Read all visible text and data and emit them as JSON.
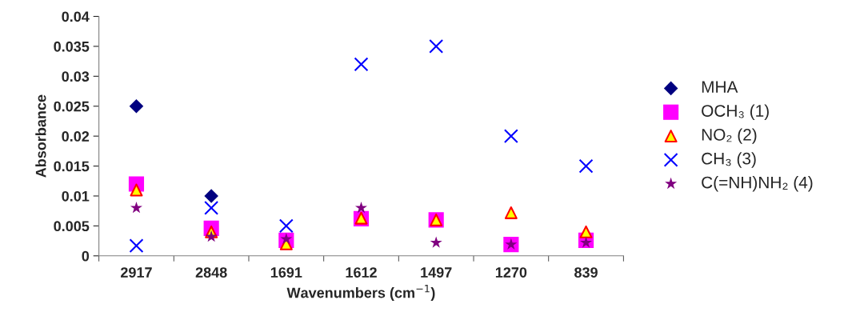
{
  "chart_data": {
    "type": "scatter",
    "xlabel": "Wavenumbers (cm$^{−1}$)",
    "ylabel": "Absorbance",
    "categories": [
      "2917",
      "2848",
      "1691",
      "1612",
      "1497",
      "1270",
      "839"
    ],
    "ylim": [
      0,
      0.04
    ],
    "yticks": [
      0,
      0.005,
      0.01,
      0.015,
      0.02,
      0.025,
      0.03,
      0.035,
      0.04
    ],
    "grid": false,
    "legend": "right",
    "series": [
      {
        "name": "MHA",
        "color": "#000080",
        "marker": "diamond",
        "values": [
          0.025,
          0.01,
          null,
          null,
          null,
          null,
          null
        ]
      },
      {
        "name": "OCH₃ (1)",
        "color": "#ff00ff",
        "marker": "square",
        "values": [
          0.012,
          0.0046,
          0.0026,
          0.0062,
          0.006,
          0.0019,
          0.0026
        ]
      },
      {
        "name": "NO₂ (2)",
        "color": "#ffff00",
        "marker": "triangle",
        "values": [
          0.011,
          0.004,
          0.002,
          0.0063,
          0.006,
          0.0072,
          0.004
        ]
      },
      {
        "name": "CH₃ (3)",
        "color": "#0000ff",
        "marker": "cross",
        "values": [
          0.0017,
          0.008,
          0.005,
          0.032,
          0.035,
          0.02,
          0.015
        ]
      },
      {
        "name": "C(=NH)NH₂ (4)",
        "color": "#800080",
        "marker": "star",
        "values": [
          0.008,
          0.0032,
          0.0028,
          0.008,
          0.0022,
          0.0019,
          0.0022
        ]
      }
    ]
  }
}
